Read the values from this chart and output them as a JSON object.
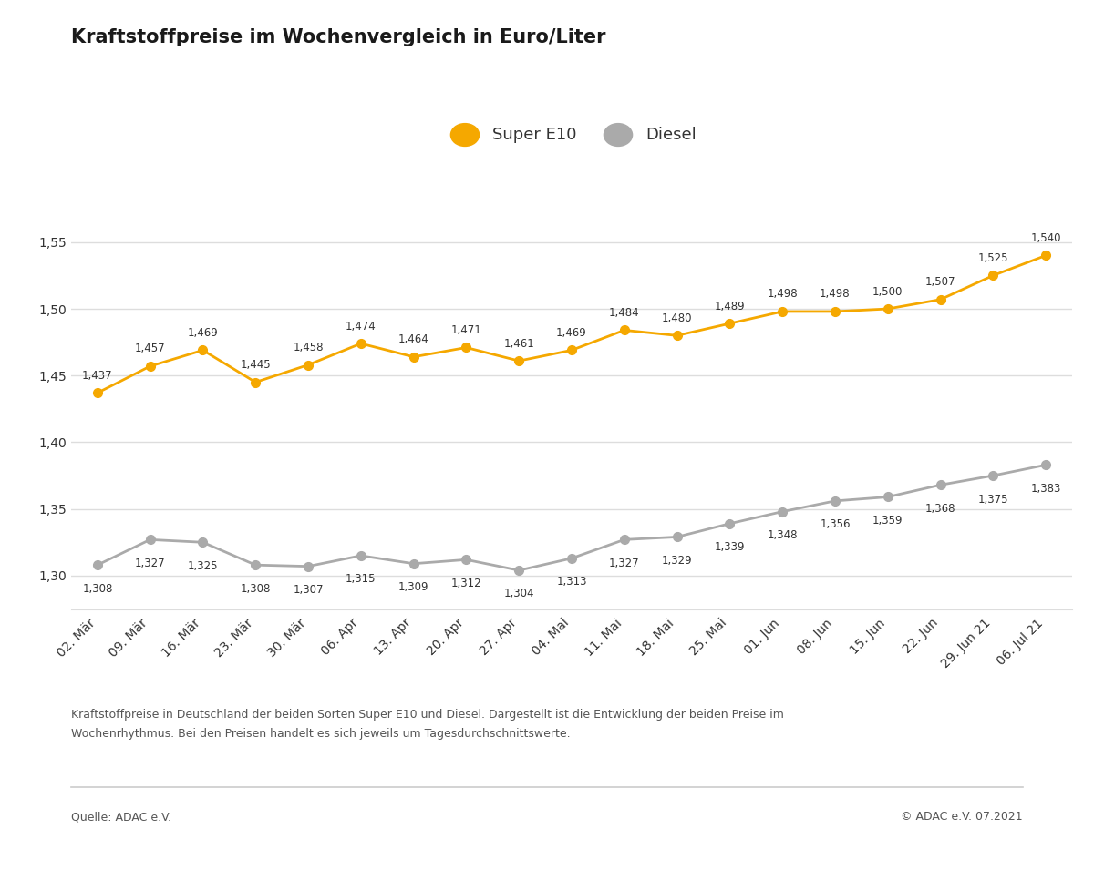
{
  "title": "Kraftstoffpreise im Wochenvergleich in Euro/Liter",
  "categories": [
    "02. Mär",
    "09. Mär",
    "16. Mär",
    "23. Mär",
    "30. Mär",
    "06. Apr",
    "13. Apr",
    "20. Apr",
    "27. Apr",
    "04. Mai",
    "11. Mai",
    "18. Mai",
    "25. Mai",
    "01. Jun",
    "08. Jun",
    "15. Jun",
    "22. Jun",
    "29. Jun 21",
    "06. Jul 21"
  ],
  "super_e10": [
    1.437,
    1.457,
    1.469,
    1.445,
    1.458,
    1.474,
    1.464,
    1.471,
    1.461,
    1.469,
    1.484,
    1.48,
    1.489,
    1.498,
    1.498,
    1.5,
    1.507,
    1.525,
    1.54
  ],
  "diesel": [
    1.308,
    1.327,
    1.325,
    1.308,
    1.307,
    1.315,
    1.309,
    1.312,
    1.304,
    1.313,
    1.327,
    1.329,
    1.339,
    1.348,
    1.356,
    1.359,
    1.368,
    1.375,
    1.383
  ],
  "super_color": "#F5A800",
  "diesel_color": "#AAAAAA",
  "ylim_min": 1.275,
  "ylim_max": 1.575,
  "yticks": [
    1.3,
    1.35,
    1.4,
    1.45,
    1.5,
    1.55
  ],
  "legend_super": "Super E10",
  "legend_diesel": "Diesel",
  "footnote_line1": "Kraftstoffpreise in Deutschland der beiden Sorten Super E10 und Diesel. Dargestellt ist die Entwicklung der beiden Preise im",
  "footnote_line2": "Wochenrhythmus. Bei den Preisen handelt es sich jeweils um Tagesdurchschnittswerte.",
  "source_left": "Quelle: ADAC e.V.",
  "source_right": "© ADAC e.V. 07.2021",
  "background_color": "#FFFFFF",
  "grid_color": "#DDDDDD",
  "title_fontsize": 15,
  "tick_fontsize": 10,
  "legend_fontsize": 13,
  "value_fontsize": 8.5,
  "footnote_fontsize": 9,
  "source_fontsize": 9
}
